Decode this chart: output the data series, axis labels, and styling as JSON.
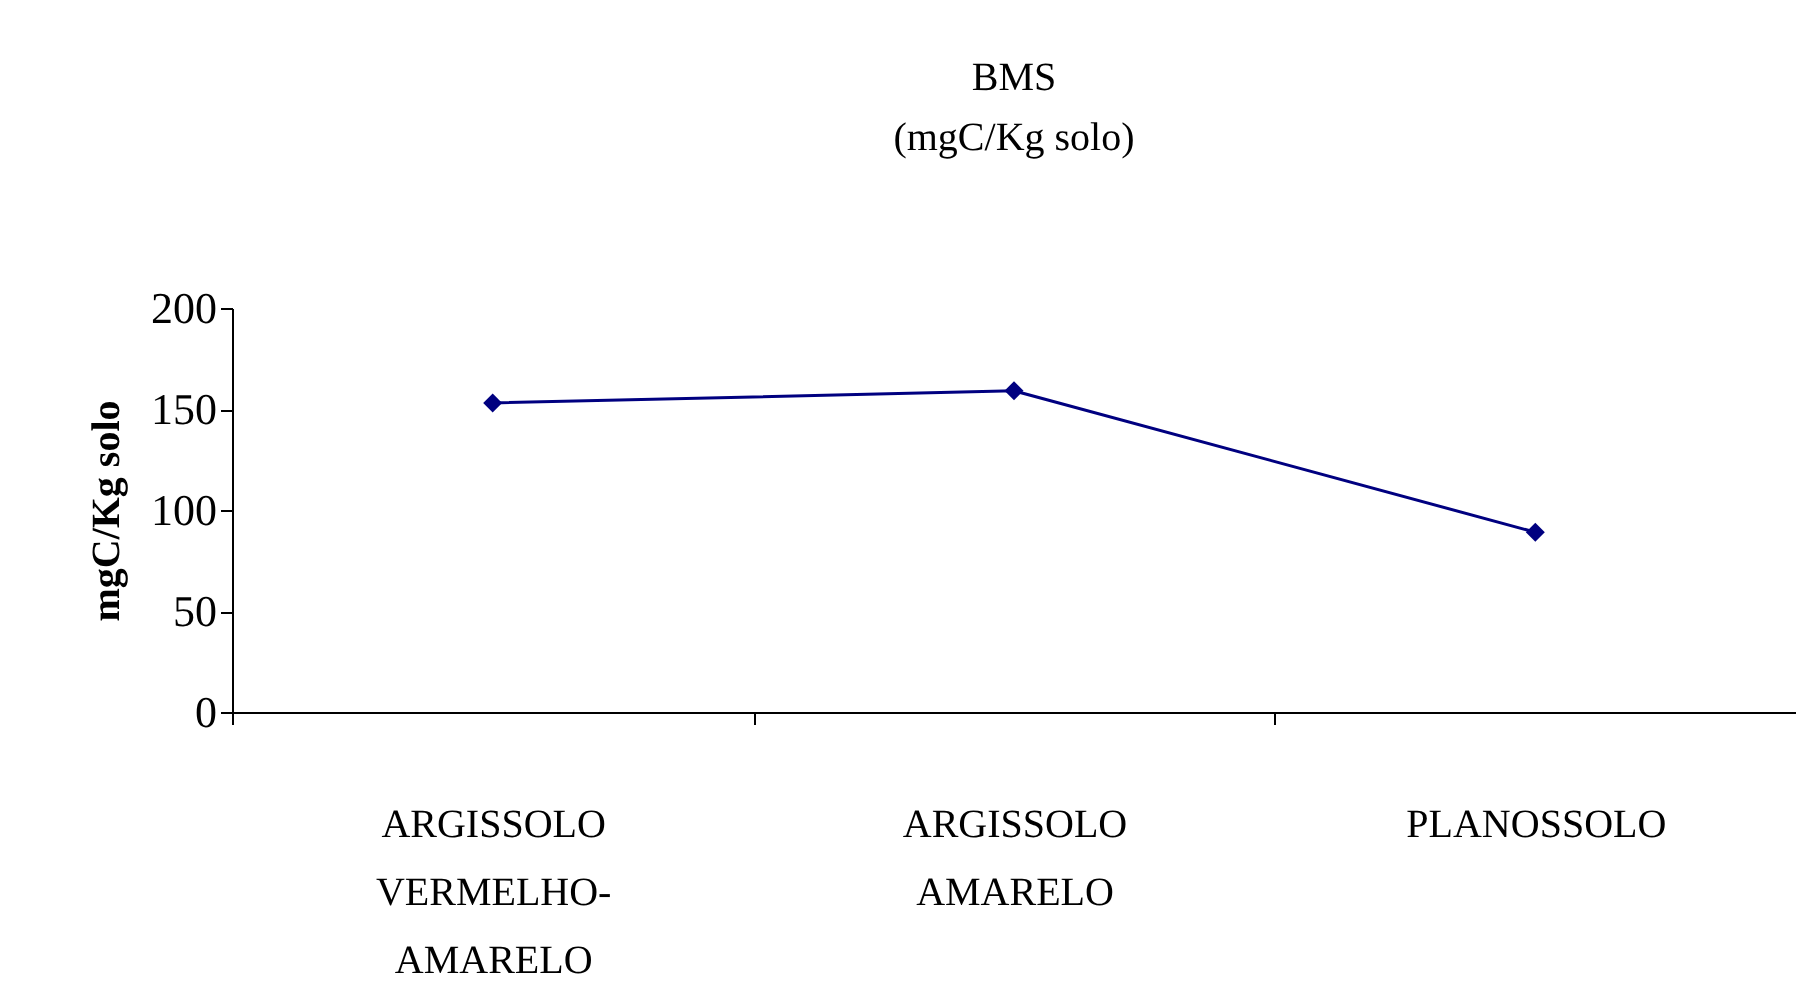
{
  "chart_data": {
    "type": "line",
    "title": "BMS",
    "subtitle": "(mgC/Kg solo)",
    "ylabel": "mgC/Kg solo",
    "categories": [
      "ARGISSOLO VERMELHO-AMARELO",
      "ARGISSOLO AMARELO",
      "PLANOSSOLO"
    ],
    "series": [
      {
        "color": "#000080",
        "values": [
          153,
          159,
          89
        ]
      }
    ],
    "ylim": [
      0,
      200
    ],
    "yticks": [
      0,
      50,
      100,
      150,
      200
    ],
    "grid": false,
    "legend": false,
    "marker": "diamond",
    "line_style": "solid"
  }
}
